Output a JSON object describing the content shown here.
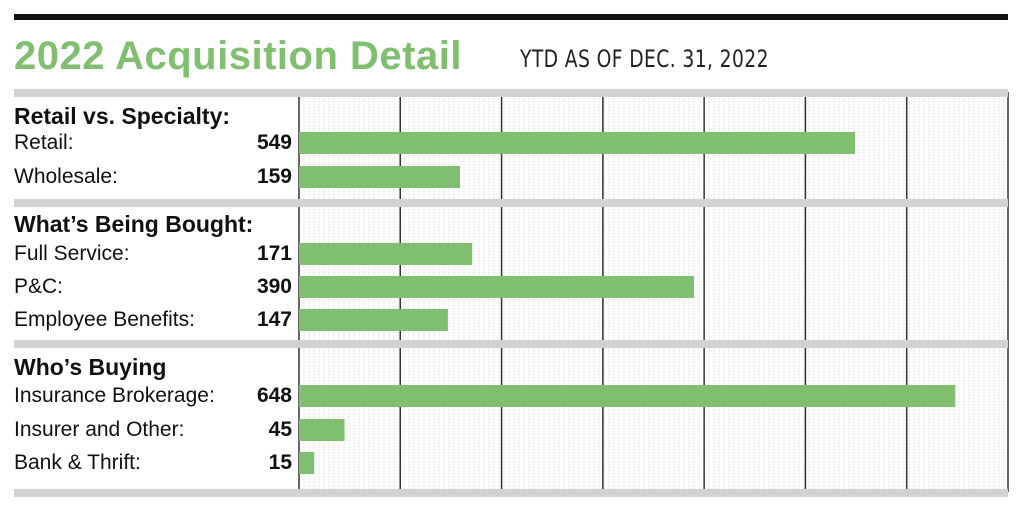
{
  "title": "2022 Acquisition Detail",
  "subtitle": "YTD AS OF DEC. 31, 2022",
  "colors": {
    "bar": "#7fbf6f",
    "title": "#7fbf6f",
    "separator": "#d2d2d2"
  },
  "chart_data": {
    "type": "bar",
    "orientation": "horizontal",
    "title": "2022 Acquisition Detail",
    "subtitle": "YTD AS OF DEC. 31, 2022",
    "xlim": [
      0,
      700
    ],
    "grid": true,
    "groups": [
      {
        "name": "Retail vs. Specialty:",
        "items": [
          {
            "label": "Retail:",
            "value": 549
          },
          {
            "label": "Wholesale:",
            "value": 159
          }
        ]
      },
      {
        "name": "What’s Being Bought:",
        "items": [
          {
            "label": "Full Service:",
            "value": 171
          },
          {
            "label": "P&C:",
            "value": 390
          },
          {
            "label": "Employee Benefits:",
            "value": 147
          }
        ]
      },
      {
        "name": "Who’s Buying",
        "items": [
          {
            "label": "Insurance Brokerage:",
            "value": 648
          },
          {
            "label": "Insurer and Other:",
            "value": 45
          },
          {
            "label": "Bank & Thrift:",
            "value": 15
          }
        ]
      }
    ]
  }
}
